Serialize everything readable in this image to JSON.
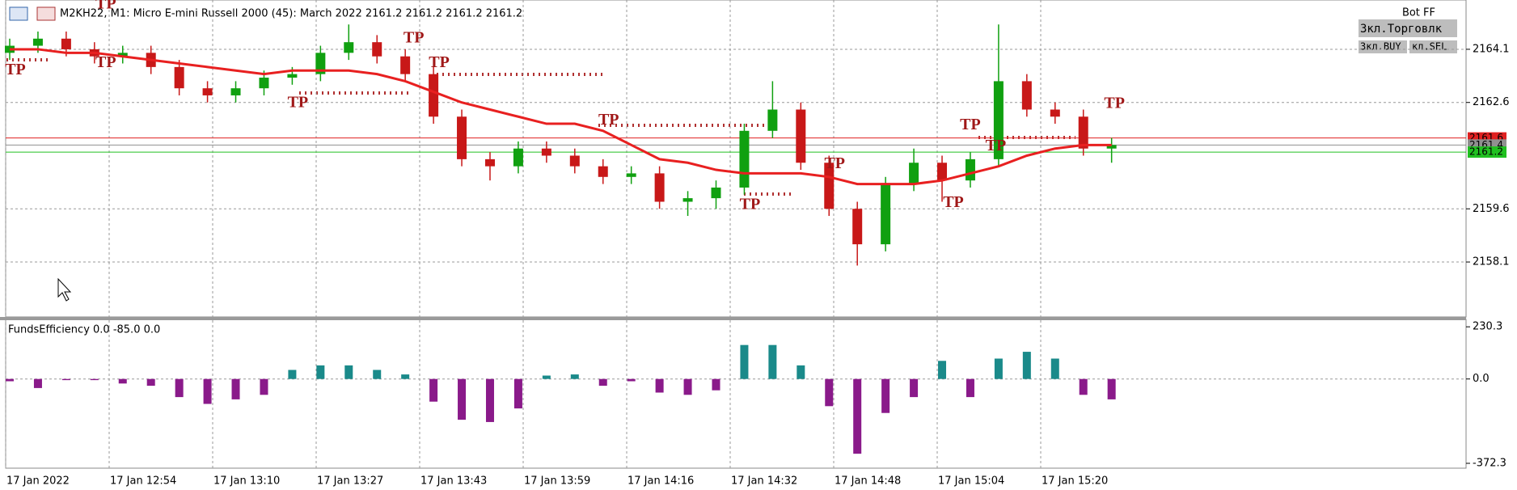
{
  "header": {
    "title": "M2KH22, M1:  Micro E-mini Russell 2000 (45): March 2022  2161.2 2161.2 2161.2 2161.2",
    "bot": "Bot FF",
    "buttons": [
      "Зкл.Торговлк",
      "Зкл.BUY",
      "кл.SEL"
    ]
  },
  "chart_data": [
    {
      "type": "candlestick",
      "open": [
        2164.0,
        2164.2,
        2164.4,
        2164.1,
        2163.9,
        2164.0,
        2163.6,
        2163.0,
        2162.8,
        2163.0,
        2163.3,
        2163.4,
        2164.0,
        2164.3,
        2163.9,
        2163.4,
        2162.2,
        2161.0,
        2160.8,
        2161.3,
        2161.1,
        2160.8,
        2160.5,
        2160.6,
        2159.8,
        2159.9,
        2160.2,
        2161.8,
        2162.4,
        2160.9,
        2159.6,
        2158.6,
        2160.3,
        2160.9,
        2160.4,
        2161.0,
        2163.2,
        2162.4,
        2162.2,
        2161.3
      ],
      "high": [
        2164.4,
        2164.6,
        2164.6,
        2164.3,
        2164.2,
        2164.2,
        2163.8,
        2163.2,
        2163.2,
        2163.5,
        2163.6,
        2164.2,
        2164.8,
        2164.5,
        2164.1,
        2163.6,
        2162.4,
        2161.2,
        2161.5,
        2161.5,
        2161.3,
        2161.0,
        2160.8,
        2160.8,
        2160.1,
        2160.4,
        2162.0,
        2163.2,
        2162.6,
        2161.1,
        2159.8,
        2160.5,
        2161.3,
        2161.1,
        2161.2,
        2164.8,
        2163.4,
        2162.6,
        2162.4,
        2161.6
      ],
      "low": [
        2163.8,
        2164.0,
        2163.9,
        2163.7,
        2163.7,
        2163.4,
        2162.8,
        2162.6,
        2162.6,
        2162.8,
        2163.1,
        2163.2,
        2163.8,
        2163.7,
        2163.2,
        2162.0,
        2160.8,
        2160.4,
        2160.6,
        2160.9,
        2160.6,
        2160.3,
        2160.3,
        2159.6,
        2159.4,
        2159.6,
        2160.0,
        2161.6,
        2160.7,
        2159.4,
        2158.0,
        2158.4,
        2160.1,
        2159.8,
        2160.2,
        2160.8,
        2162.2,
        2162.0,
        2161.1,
        2160.9
      ],
      "close": [
        2164.2,
        2164.4,
        2164.1,
        2163.9,
        2164.0,
        2163.6,
        2163.0,
        2162.8,
        2163.0,
        2163.3,
        2163.4,
        2164.0,
        2164.3,
        2163.9,
        2163.4,
        2162.2,
        2161.0,
        2160.8,
        2161.3,
        2161.1,
        2160.8,
        2160.5,
        2160.6,
        2159.8,
        2159.9,
        2160.2,
        2161.8,
        2162.4,
        2160.9,
        2159.6,
        2158.6,
        2160.3,
        2160.9,
        2160.4,
        2161.0,
        2163.2,
        2162.4,
        2162.2,
        2161.3,
        2161.4
      ],
      "up_color": "#10a010",
      "down_color": "#c81818",
      "ma": {
        "color": "#e82020",
        "values": [
          2164.1,
          2164.1,
          2164.0,
          2164.0,
          2163.9,
          2163.8,
          2163.7,
          2163.6,
          2163.5,
          2163.4,
          2163.5,
          2163.5,
          2163.5,
          2163.4,
          2163.2,
          2162.9,
          2162.6,
          2162.4,
          2162.2,
          2162.0,
          2162.0,
          2161.8,
          2161.4,
          2161.0,
          2160.9,
          2160.7,
          2160.6,
          2160.6,
          2160.6,
          2160.5,
          2160.3,
          2160.3,
          2160.3,
          2160.4,
          2160.6,
          2160.8,
          2161.1,
          2161.3,
          2161.4,
          2161.4
        ]
      },
      "price_lines": [
        {
          "value": 2161.6,
          "color": "#e02020"
        },
        {
          "value": 2161.4,
          "color": "#909090"
        },
        {
          "value": 2161.2,
          "color": "#20c020"
        }
      ],
      "annotations": [
        {
          "text": "TP",
          "index": 3.4,
          "price": 2165.35
        },
        {
          "text": "TP",
          "index": 0.2,
          "price": 2163.5
        },
        {
          "text": "TP",
          "index": 3.4,
          "price": 2163.7
        },
        {
          "text": "TP",
          "index": 10.2,
          "price": 2162.57
        },
        {
          "text": "TP",
          "index": 14.3,
          "price": 2164.4
        },
        {
          "text": "TP",
          "index": 15.2,
          "price": 2163.7
        },
        {
          "text": "TP",
          "index": 21.2,
          "price": 2162.08
        },
        {
          "text": "TP",
          "index": 26.2,
          "price": 2159.7
        },
        {
          "text": "TP",
          "index": 29.2,
          "price": 2160.85
        },
        {
          "text": "TP",
          "index": 33.4,
          "price": 2159.76
        },
        {
          "text": "TP",
          "index": 34,
          "price": 2161.95
        },
        {
          "text": "TP",
          "index": 34.9,
          "price": 2161.35
        },
        {
          "text": "TP",
          "index": 39.1,
          "price": 2162.55
        }
      ],
      "ylim": [
        2156.55,
        2165.49
      ],
      "yticks": [
        2164.1,
        2162.6,
        2159.6,
        2158.1
      ],
      "grid": true,
      "time_labels": [
        "17 Jan 2022",
        "17 Jan 12:54",
        "17 Jan 13:10",
        "17 Jan 13:27",
        "17 Jan 13:43",
        "17 Jan 13:59",
        "17 Jan 14:16",
        "17 Jan 14:32",
        "17 Jan 14:48",
        "17 Jan 15:04",
        "17 Jan 15:20"
      ]
    },
    {
      "type": "bar",
      "title": "FundsEfficiency 0.0 -85.0 0.0",
      "values": [
        -10,
        -40,
        -5,
        -5,
        -20,
        -30,
        -80,
        -110,
        -90,
        -70,
        40,
        60,
        60,
        40,
        20,
        -100,
        -180,
        -190,
        -130,
        15,
        20,
        -30,
        -10,
        -60,
        -70,
        -50,
        150,
        150,
        60,
        -120,
        -330,
        -150,
        -80,
        80,
        -80,
        90,
        120,
        90,
        -70,
        -90
      ],
      "pos_color": "#1a8a8a",
      "neg_color": "#8a1a8a",
      "ylim": [
        -393.7,
        255.9
      ],
      "yticks": [
        230.3,
        {
          "value": 0,
          "label": "0.0"
        },
        -372.3
      ]
    }
  ]
}
